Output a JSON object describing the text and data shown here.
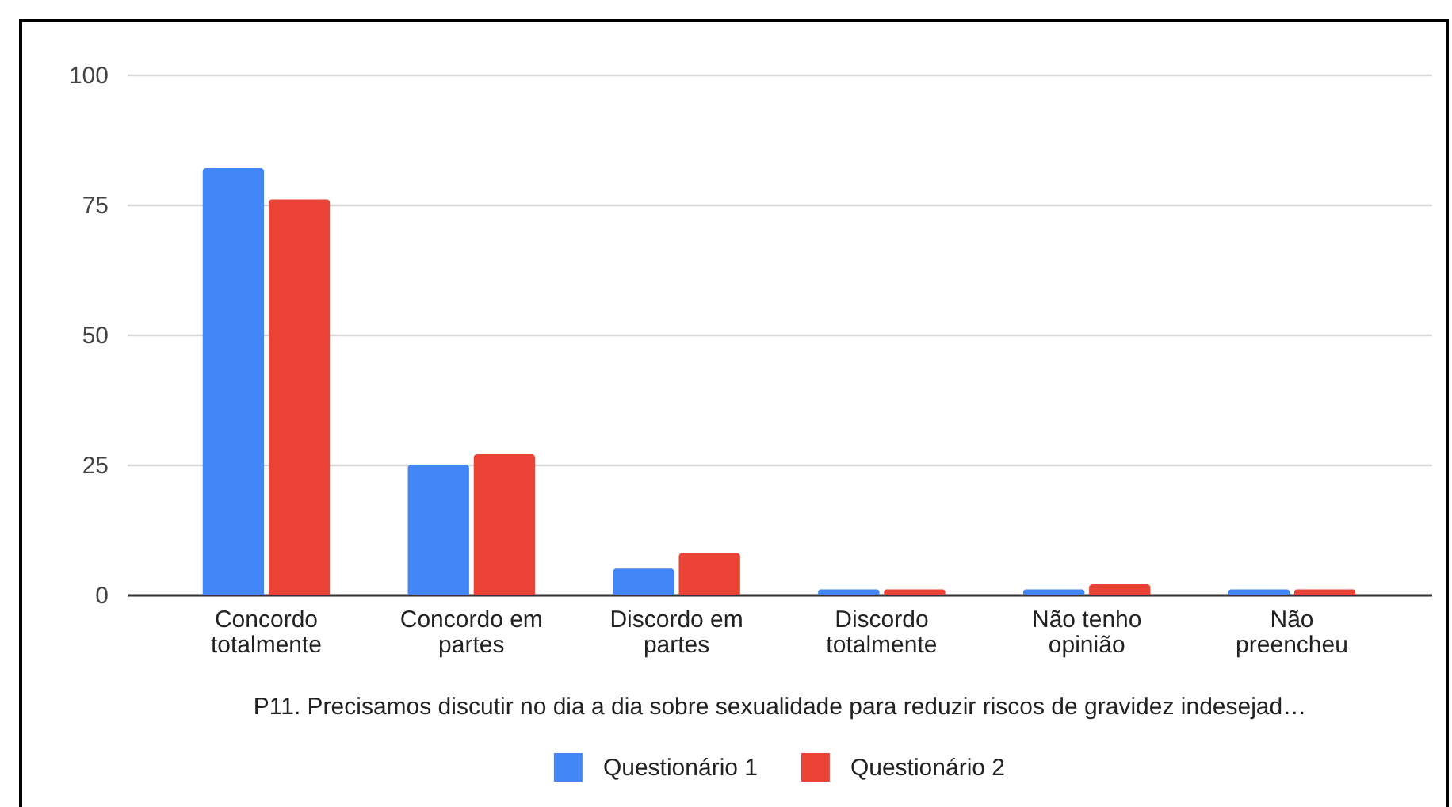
{
  "chart_data": {
    "type": "bar",
    "xlabel": "P11. Precisamos discutir no dia a dia sobre sexualidade para reduzir riscos de gravidez indesejad…",
    "categories": [
      "Concordo totalmente",
      "Concordo em partes",
      "Discordo em partes",
      "Discordo totalmente",
      "Não tenho opinião",
      "Não preencheu"
    ],
    "series": [
      {
        "name": "Questionário 1",
        "color": "#4285f4",
        "values": [
          82,
          25,
          5,
          1,
          1,
          1
        ]
      },
      {
        "name": "Questionário 2",
        "color": "#ea4335",
        "values": [
          76,
          27,
          8,
          1,
          2,
          1
        ]
      }
    ],
    "ylim": [
      0,
      100
    ],
    "yticks": [
      0,
      25,
      50,
      75,
      100
    ],
    "grid": "y",
    "legend": "bottom"
  }
}
